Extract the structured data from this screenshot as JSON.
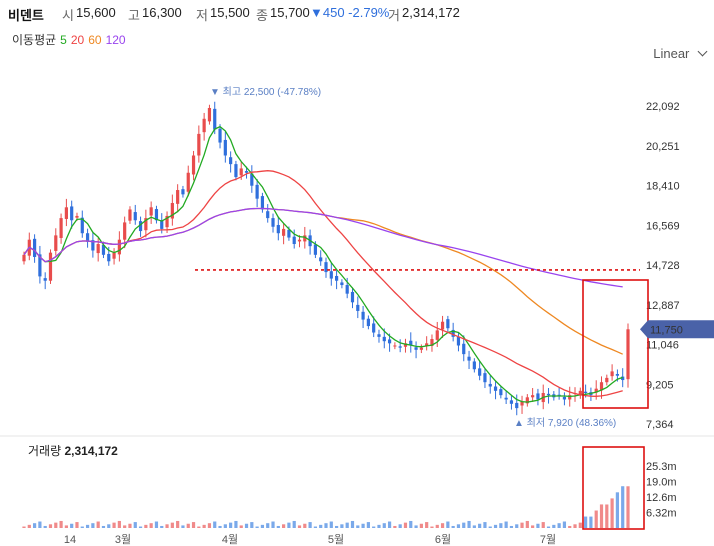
{
  "header": {
    "name": "비덴트",
    "open_label": "시",
    "open": "15,600",
    "high_label": "고",
    "high": "16,300",
    "low_label": "저",
    "low": "15,500",
    "close_label": "종",
    "close": "15,700",
    "change": "▼450 -2.79%",
    "volume_label": "거",
    "volume": "2,314,172"
  },
  "moving_average": {
    "label": "이동평균",
    "periods": [
      {
        "value": "5",
        "color": "#22aa22"
      },
      {
        "value": "20",
        "color": "#ee4444"
      },
      {
        "value": "60",
        "color": "#ee8822"
      },
      {
        "value": "120",
        "color": "#9944ee"
      }
    ]
  },
  "scale_selector": {
    "label": "Linear",
    "icon": "chevron-down-icon"
  },
  "volume_panel": {
    "label": "거래량",
    "value": "2,314,172"
  },
  "colors": {
    "up": "#e84c4c",
    "down": "#2f6fdc",
    "current_price": "#4a62a8",
    "highlight_box": "#dd1111",
    "reference_line": "#dd1111"
  },
  "chart_data": {
    "type": "candlestick",
    "price_axis": {
      "ticks": [
        "22,092",
        "20,251",
        "18,410",
        "16,569",
        "14,728",
        "12,887",
        "11,046",
        "9,205",
        "7,364"
      ],
      "ylim": [
        7364,
        23000
      ]
    },
    "volume_axis": {
      "ticks": [
        "25.3m",
        "19.0m",
        "12.6m",
        "6.32m"
      ]
    },
    "x_ticks": [
      "14",
      "3월",
      "4월",
      "5월",
      "6월",
      "7월"
    ],
    "current_price": "11,750",
    "current_price_value": 11750,
    "reference_price": 14500,
    "high_annotation": {
      "text": "최고 22,500 (-47.78%)",
      "value": 22500
    },
    "low_annotation": {
      "text": "최저 7,920 (48.36%)",
      "value": 7920
    },
    "close_series": [
      15200,
      15900,
      15100,
      14200,
      14000,
      15300,
      16100,
      16900,
      17400,
      16800,
      17000,
      16200,
      15800,
      15400,
      15700,
      15200,
      14900,
      15300,
      15900,
      16700,
      17300,
      16800,
      16300,
      16900,
      17400,
      16800,
      16400,
      17000,
      17600,
      18200,
      18000,
      19000,
      19800,
      20800,
      21500,
      22000,
      21000,
      20400,
      19800,
      19400,
      18800,
      19200,
      19000,
      18400,
      17800,
      17300,
      16900,
      16500,
      16200,
      16400,
      16000,
      15700,
      15900,
      16100,
      15600,
      15200,
      14900,
      14400,
      14100,
      14000,
      13800,
      13400,
      13000,
      12600,
      12200,
      11900,
      11600,
      11400,
      11200,
      11100,
      11000,
      10900,
      11100,
      11000,
      10800,
      10900,
      11100,
      11300,
      11700,
      12100,
      11800,
      11400,
      11000,
      10600,
      10300,
      9900,
      9600,
      9300,
      9100,
      8900,
      8700,
      8500,
      8300,
      8100,
      8400,
      8600,
      8700,
      8500,
      8800,
      8700,
      8600,
      8700,
      8500,
      8700,
      8800,
      8900,
      8800,
      8700,
      9000,
      9300,
      9500,
      9800,
      9600,
      9400,
      11750
    ]
  }
}
